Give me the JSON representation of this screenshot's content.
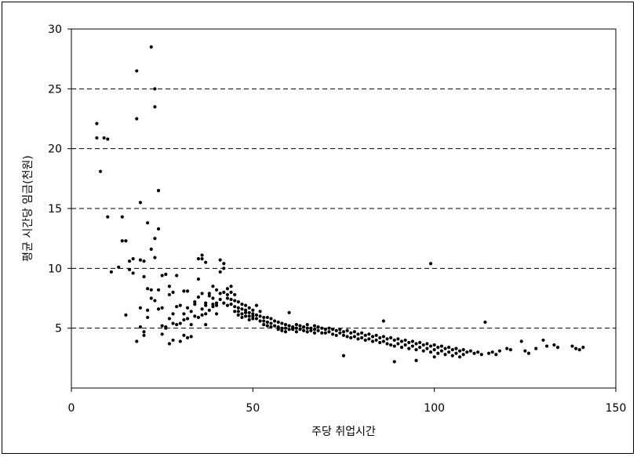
{
  "chart_data": {
    "type": "scatter",
    "xlabel": "주당 취업시간",
    "ylabel": "평균 시간당 임금(천원)",
    "xlim": [
      0,
      150
    ],
    "ylim": [
      0,
      30
    ],
    "x_ticks": [
      "0",
      "50",
      "100",
      "150"
    ],
    "y_ticks": [
      "5",
      "10",
      "15",
      "20",
      "25",
      "30"
    ],
    "grid": "horizontal dashed at y ticks",
    "legend": "none",
    "marker_color": "#000000",
    "series": [
      {
        "points": [
          [
            7,
            22.1
          ],
          [
            7,
            20.9
          ],
          [
            8,
            18.1
          ],
          [
            9,
            20.9
          ],
          [
            10,
            14.3
          ],
          [
            10,
            20.8
          ],
          [
            11,
            9.7
          ],
          [
            13,
            10.1
          ],
          [
            14,
            14.3
          ],
          [
            14,
            12.3
          ],
          [
            15,
            12.3
          ],
          [
            15,
            6.1
          ],
          [
            16,
            9.9
          ],
          [
            16,
            10.6
          ],
          [
            17,
            9.6
          ],
          [
            17,
            10.8
          ],
          [
            18,
            3.9
          ],
          [
            18,
            22.5
          ],
          [
            18,
            26.5
          ],
          [
            19,
            15.5
          ],
          [
            19,
            10.7
          ],
          [
            19,
            6.7
          ],
          [
            19,
            5.1
          ],
          [
            20,
            10.6
          ],
          [
            20,
            9.3
          ],
          [
            20,
            4.7
          ],
          [
            20,
            4.4
          ],
          [
            21,
            13.8
          ],
          [
            21,
            8.3
          ],
          [
            21,
            6.5
          ],
          [
            21,
            5.9
          ],
          [
            22,
            11.6
          ],
          [
            22,
            8.2
          ],
          [
            22,
            7.5
          ],
          [
            22,
            28.5
          ],
          [
            23,
            25
          ],
          [
            23,
            23.5
          ],
          [
            23,
            12.5
          ],
          [
            23,
            10.9
          ],
          [
            23,
            7.3
          ],
          [
            24,
            13.3
          ],
          [
            24,
            8.2
          ],
          [
            24,
            6.6
          ],
          [
            24,
            16.5
          ],
          [
            25,
            9.4
          ],
          [
            25,
            5.2
          ],
          [
            25,
            4.5
          ],
          [
            25,
            6.7
          ],
          [
            26,
            9.5
          ],
          [
            26,
            5.1
          ],
          [
            26,
            5.0
          ],
          [
            27,
            8.5
          ],
          [
            27,
            7.8
          ],
          [
            27,
            5.8
          ],
          [
            27,
            3.7
          ],
          [
            28,
            8.0
          ],
          [
            28,
            6.2
          ],
          [
            28,
            5.4
          ],
          [
            28,
            4.0
          ],
          [
            29,
            9.4
          ],
          [
            29,
            5.3
          ],
          [
            29,
            6.8
          ],
          [
            30,
            6.9
          ],
          [
            30,
            5.4
          ],
          [
            30,
            3.9
          ],
          [
            31,
            6.2
          ],
          [
            31,
            5.7
          ],
          [
            31,
            4.4
          ],
          [
            31,
            8.1
          ],
          [
            32,
            6.7
          ],
          [
            32,
            5.8
          ],
          [
            32,
            4.2
          ],
          [
            32,
            8.1
          ],
          [
            33,
            6.4
          ],
          [
            33,
            5.3
          ],
          [
            33,
            4.3
          ],
          [
            34,
            7.2
          ],
          [
            34,
            6.0
          ],
          [
            34,
            7.0
          ],
          [
            35,
            10.8
          ],
          [
            35,
            9.1
          ],
          [
            35,
            7.6
          ],
          [
            35,
            5.9
          ],
          [
            36,
            11.1
          ],
          [
            36,
            10.8
          ],
          [
            36,
            7.9
          ],
          [
            36,
            6.6
          ],
          [
            36,
            6.1
          ],
          [
            37,
            10.5
          ],
          [
            37,
            7.1
          ],
          [
            37,
            6.9
          ],
          [
            37,
            6.2
          ],
          [
            37,
            5.3
          ],
          [
            38,
            7.9
          ],
          [
            38,
            7.7
          ],
          [
            38,
            6.5
          ],
          [
            39,
            8.5
          ],
          [
            39,
            7.5
          ],
          [
            39,
            7.0
          ],
          [
            39,
            6.8
          ],
          [
            40,
            8.2
          ],
          [
            40,
            7.1
          ],
          [
            40,
            6.9
          ],
          [
            40,
            6.2
          ],
          [
            41,
            10.7
          ],
          [
            41,
            9.7
          ],
          [
            41,
            7.9
          ],
          [
            41,
            7.4
          ],
          [
            42,
            10.4
          ],
          [
            42,
            10.0
          ],
          [
            42,
            8.0
          ],
          [
            42,
            7.1
          ],
          [
            43,
            8.3
          ],
          [
            43,
            7.8
          ],
          [
            43,
            7.5
          ],
          [
            43,
            6.9
          ],
          [
            44,
            8.5
          ],
          [
            44,
            8.0
          ],
          [
            44,
            7.4
          ],
          [
            44,
            7.0
          ],
          [
            45,
            7.8
          ],
          [
            45,
            7.3
          ],
          [
            45,
            6.8
          ],
          [
            45,
            6.4
          ],
          [
            46,
            7.2
          ],
          [
            46,
            6.7
          ],
          [
            46,
            6.4
          ],
          [
            46,
            6.1
          ],
          [
            47,
            7.0
          ],
          [
            47,
            6.6
          ],
          [
            47,
            6.2
          ],
          [
            47,
            5.9
          ],
          [
            48,
            6.9
          ],
          [
            48,
            6.5
          ],
          [
            48,
            6.3
          ],
          [
            48,
            6.0
          ],
          [
            49,
            6.7
          ],
          [
            49,
            6.3
          ],
          [
            49,
            6.0
          ],
          [
            49,
            5.7
          ],
          [
            50,
            6.5
          ],
          [
            50,
            6.2
          ],
          [
            50,
            6.0
          ],
          [
            50,
            5.8
          ],
          [
            51,
            6.9
          ],
          [
            51,
            6.1
          ],
          [
            51,
            5.8
          ],
          [
            52,
            6.4
          ],
          [
            52,
            6.0
          ],
          [
            52,
            5.6
          ],
          [
            53,
            5.9
          ],
          [
            53,
            5.6
          ],
          [
            53,
            5.3
          ],
          [
            54,
            5.9
          ],
          [
            54,
            5.5
          ],
          [
            54,
            5.2
          ],
          [
            55,
            5.8
          ],
          [
            55,
            5.4
          ],
          [
            55,
            5.1
          ],
          [
            56,
            5.6
          ],
          [
            56,
            5.2
          ],
          [
            57,
            5.5
          ],
          [
            57,
            5.1
          ],
          [
            57,
            4.9
          ],
          [
            58,
            5.4
          ],
          [
            58,
            5.0
          ],
          [
            58,
            4.8
          ],
          [
            59,
            5.3
          ],
          [
            59,
            5.0
          ],
          [
            59,
            4.7
          ],
          [
            60,
            6.3
          ],
          [
            60,
            5.2
          ],
          [
            60,
            4.9
          ],
          [
            61,
            5.1
          ],
          [
            61,
            4.9
          ],
          [
            62,
            5.3
          ],
          [
            62,
            5.0
          ],
          [
            62,
            4.7
          ],
          [
            63,
            5.2
          ],
          [
            63,
            4.9
          ],
          [
            64,
            5.1
          ],
          [
            64,
            4.8
          ],
          [
            65,
            5.3
          ],
          [
            65,
            5.0
          ],
          [
            65,
            4.7
          ],
          [
            66,
            5.0
          ],
          [
            66,
            4.8
          ],
          [
            67,
            5.2
          ],
          [
            67,
            4.9
          ],
          [
            67,
            4.6
          ],
          [
            68,
            5.1
          ],
          [
            68,
            4.8
          ],
          [
            69,
            5.0
          ],
          [
            69,
            4.6
          ],
          [
            70,
            4.9
          ],
          [
            70,
            4.6
          ],
          [
            71,
            5.0
          ],
          [
            71,
            4.7
          ],
          [
            72,
            4.9
          ],
          [
            72,
            4.5
          ],
          [
            73,
            4.8
          ],
          [
            73,
            4.4
          ],
          [
            74,
            4.9
          ],
          [
            74,
            4.6
          ],
          [
            75,
            4.7
          ],
          [
            75,
            4.4
          ],
          [
            75,
            2.7
          ],
          [
            76,
            4.8
          ],
          [
            76,
            4.3
          ],
          [
            77,
            4.6
          ],
          [
            77,
            4.2
          ],
          [
            78,
            4.7
          ],
          [
            78,
            4.3
          ],
          [
            79,
            4.5
          ],
          [
            79,
            4.1
          ],
          [
            80,
            4.6
          ],
          [
            80,
            4.2
          ],
          [
            81,
            4.4
          ],
          [
            81,
            4.0
          ],
          [
            82,
            4.5
          ],
          [
            82,
            4.1
          ],
          [
            83,
            4.3
          ],
          [
            83,
            3.9
          ],
          [
            84,
            4.4
          ],
          [
            84,
            4.0
          ],
          [
            85,
            4.2
          ],
          [
            85,
            3.8
          ],
          [
            86,
            4.3
          ],
          [
            86,
            3.9
          ],
          [
            86,
            5.6
          ],
          [
            87,
            4.1
          ],
          [
            87,
            3.7
          ],
          [
            88,
            4.2
          ],
          [
            88,
            3.6
          ],
          [
            89,
            4.0
          ],
          [
            89,
            3.5
          ],
          [
            89,
            2.2
          ],
          [
            90,
            4.1
          ],
          [
            90,
            3.7
          ],
          [
            91,
            3.9
          ],
          [
            91,
            3.4
          ],
          [
            92,
            4.0
          ],
          [
            92,
            3.6
          ],
          [
            93,
            3.8
          ],
          [
            93,
            3.3
          ],
          [
            94,
            3.9
          ],
          [
            94,
            3.5
          ],
          [
            95,
            3.7
          ],
          [
            95,
            3.2
          ],
          [
            95,
            2.3
          ],
          [
            96,
            3.8
          ],
          [
            96,
            3.4
          ],
          [
            97,
            3.6
          ],
          [
            97,
            3.1
          ],
          [
            98,
            3.7
          ],
          [
            98,
            3.3
          ],
          [
            99,
            10.4
          ],
          [
            99,
            3.5
          ],
          [
            99,
            3.0
          ],
          [
            100,
            3.6
          ],
          [
            100,
            3.2
          ],
          [
            100,
            2.6
          ],
          [
            101,
            3.4
          ],
          [
            101,
            2.9
          ],
          [
            102,
            3.5
          ],
          [
            102,
            3.1
          ],
          [
            103,
            3.3
          ],
          [
            103,
            2.8
          ],
          [
            104,
            3.4
          ],
          [
            104,
            3.0
          ],
          [
            105,
            3.2
          ],
          [
            105,
            2.7
          ],
          [
            106,
            3.3
          ],
          [
            106,
            2.9
          ],
          [
            107,
            3.1
          ],
          [
            107,
            2.6
          ],
          [
            108,
            3.2
          ],
          [
            108,
            2.8
          ],
          [
            109,
            3.0
          ],
          [
            110,
            3.1
          ],
          [
            111,
            2.9
          ],
          [
            112,
            3.0
          ],
          [
            113,
            2.8
          ],
          [
            114,
            5.5
          ],
          [
            115,
            2.9
          ],
          [
            116,
            3.0
          ],
          [
            117,
            2.8
          ],
          [
            118,
            3.1
          ],
          [
            120,
            3.3
          ],
          [
            121,
            3.2
          ],
          [
            124,
            3.9
          ],
          [
            125,
            3.1
          ],
          [
            126,
            2.9
          ],
          [
            128,
            3.3
          ],
          [
            130,
            4.0
          ],
          [
            131,
            3.5
          ],
          [
            133,
            3.6
          ],
          [
            134,
            3.4
          ],
          [
            138,
            3.5
          ],
          [
            139,
            3.3
          ],
          [
            140,
            3.2
          ],
          [
            141,
            3.4
          ]
        ]
      }
    ]
  }
}
